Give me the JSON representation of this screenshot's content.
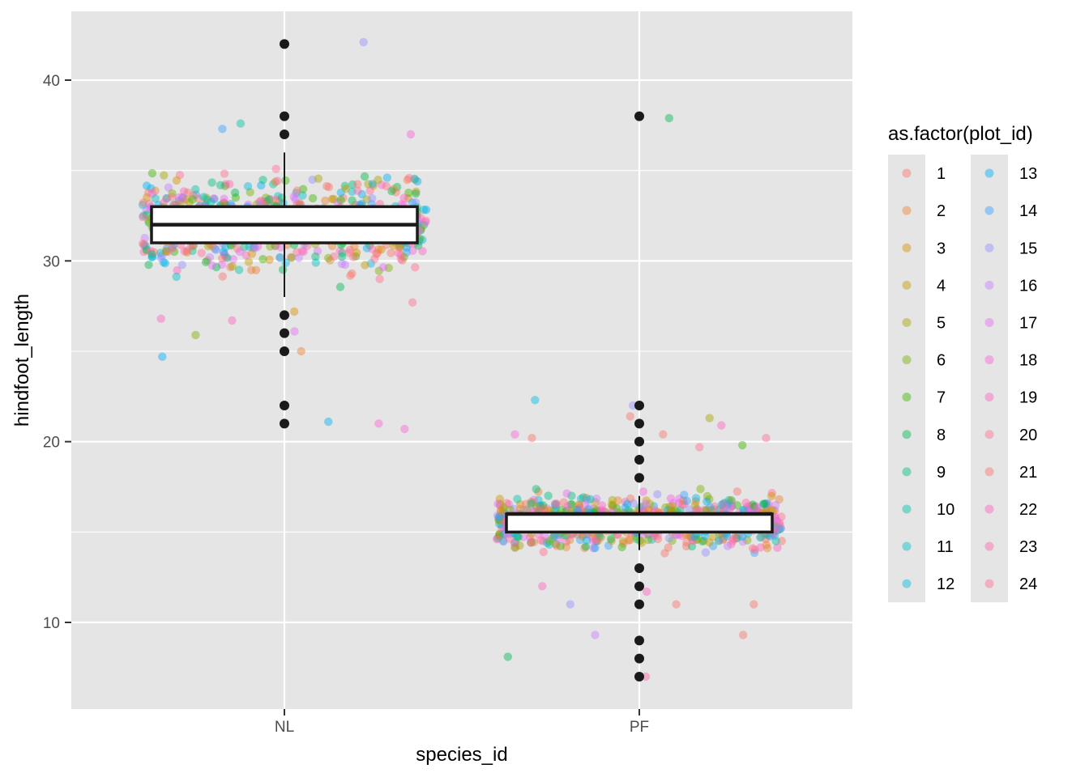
{
  "chart_data": {
    "type": "boxplot_with_jitter",
    "xlabel": "species_id",
    "ylabel": "hindfoot_length",
    "categories": [
      "NL",
      "PF"
    ],
    "ylim": [
      5.3,
      43.3
    ],
    "yticks": [
      10,
      20,
      30,
      40
    ],
    "grid": true,
    "legend": {
      "title": "as.factor(plot_id)",
      "position": "right",
      "entries": [
        "1",
        "2",
        "3",
        "4",
        "5",
        "6",
        "7",
        "8",
        "9",
        "10",
        "11",
        "12",
        "13",
        "14",
        "15",
        "16",
        "17",
        "18",
        "19",
        "20",
        "21",
        "22",
        "23",
        "24"
      ],
      "colors": [
        "#F8766D",
        "#EA8331",
        "#D89000",
        "#C09B00",
        "#A3A500",
        "#7CAE00",
        "#39B600",
        "#00BB4E",
        "#00BF7D",
        "#00C1A3",
        "#00BFC4",
        "#00BAE0",
        "#00B0F6",
        "#35A2FF",
        "#9590FF",
        "#C77CFF",
        "#E76BF3",
        "#FA62DB",
        "#FF62BC",
        "#FF6C91",
        "#F8766D",
        "#FF61C3",
        "#FF65AE",
        "#FF6C91"
      ]
    },
    "boxes": [
      {
        "category": "NL",
        "whisker_low": 28,
        "q1": 31,
        "median": 32,
        "q3": 33,
        "whisker_high": 36,
        "outliers": [
          21,
          22,
          25,
          26,
          27,
          37,
          38,
          42
        ]
      },
      {
        "category": "PF",
        "whisker_low": 14,
        "q1": 15,
        "median": 16,
        "q3": 16,
        "whisker_high": 17,
        "outliers": [
          7,
          8,
          9,
          11,
          12,
          13,
          18,
          19,
          20,
          21,
          22,
          38
        ]
      }
    ],
    "jitter_summary": [
      {
        "category": "NL",
        "center": 32,
        "spread": 1.7,
        "n": 700,
        "extremes": [
          20.7,
          26.8,
          27.7,
          21.1,
          21.0,
          24.7,
          22.0,
          25.0,
          26.1,
          26.7,
          25.9,
          27.2,
          37.6,
          37.3,
          37.0,
          42.1
        ]
      },
      {
        "category": "PF",
        "center": 15.6,
        "spread": 0.9,
        "n": 900,
        "extremes": [
          7.0,
          8.1,
          9.3,
          9.3,
          11.0,
          11.0,
          11.0,
          11.7,
          12.0,
          20.9,
          20.4,
          20.4,
          19.8,
          19.7,
          22.3,
          22.0,
          21.4,
          21.3,
          20.2,
          20.2,
          37.9
        ]
      }
    ]
  }
}
